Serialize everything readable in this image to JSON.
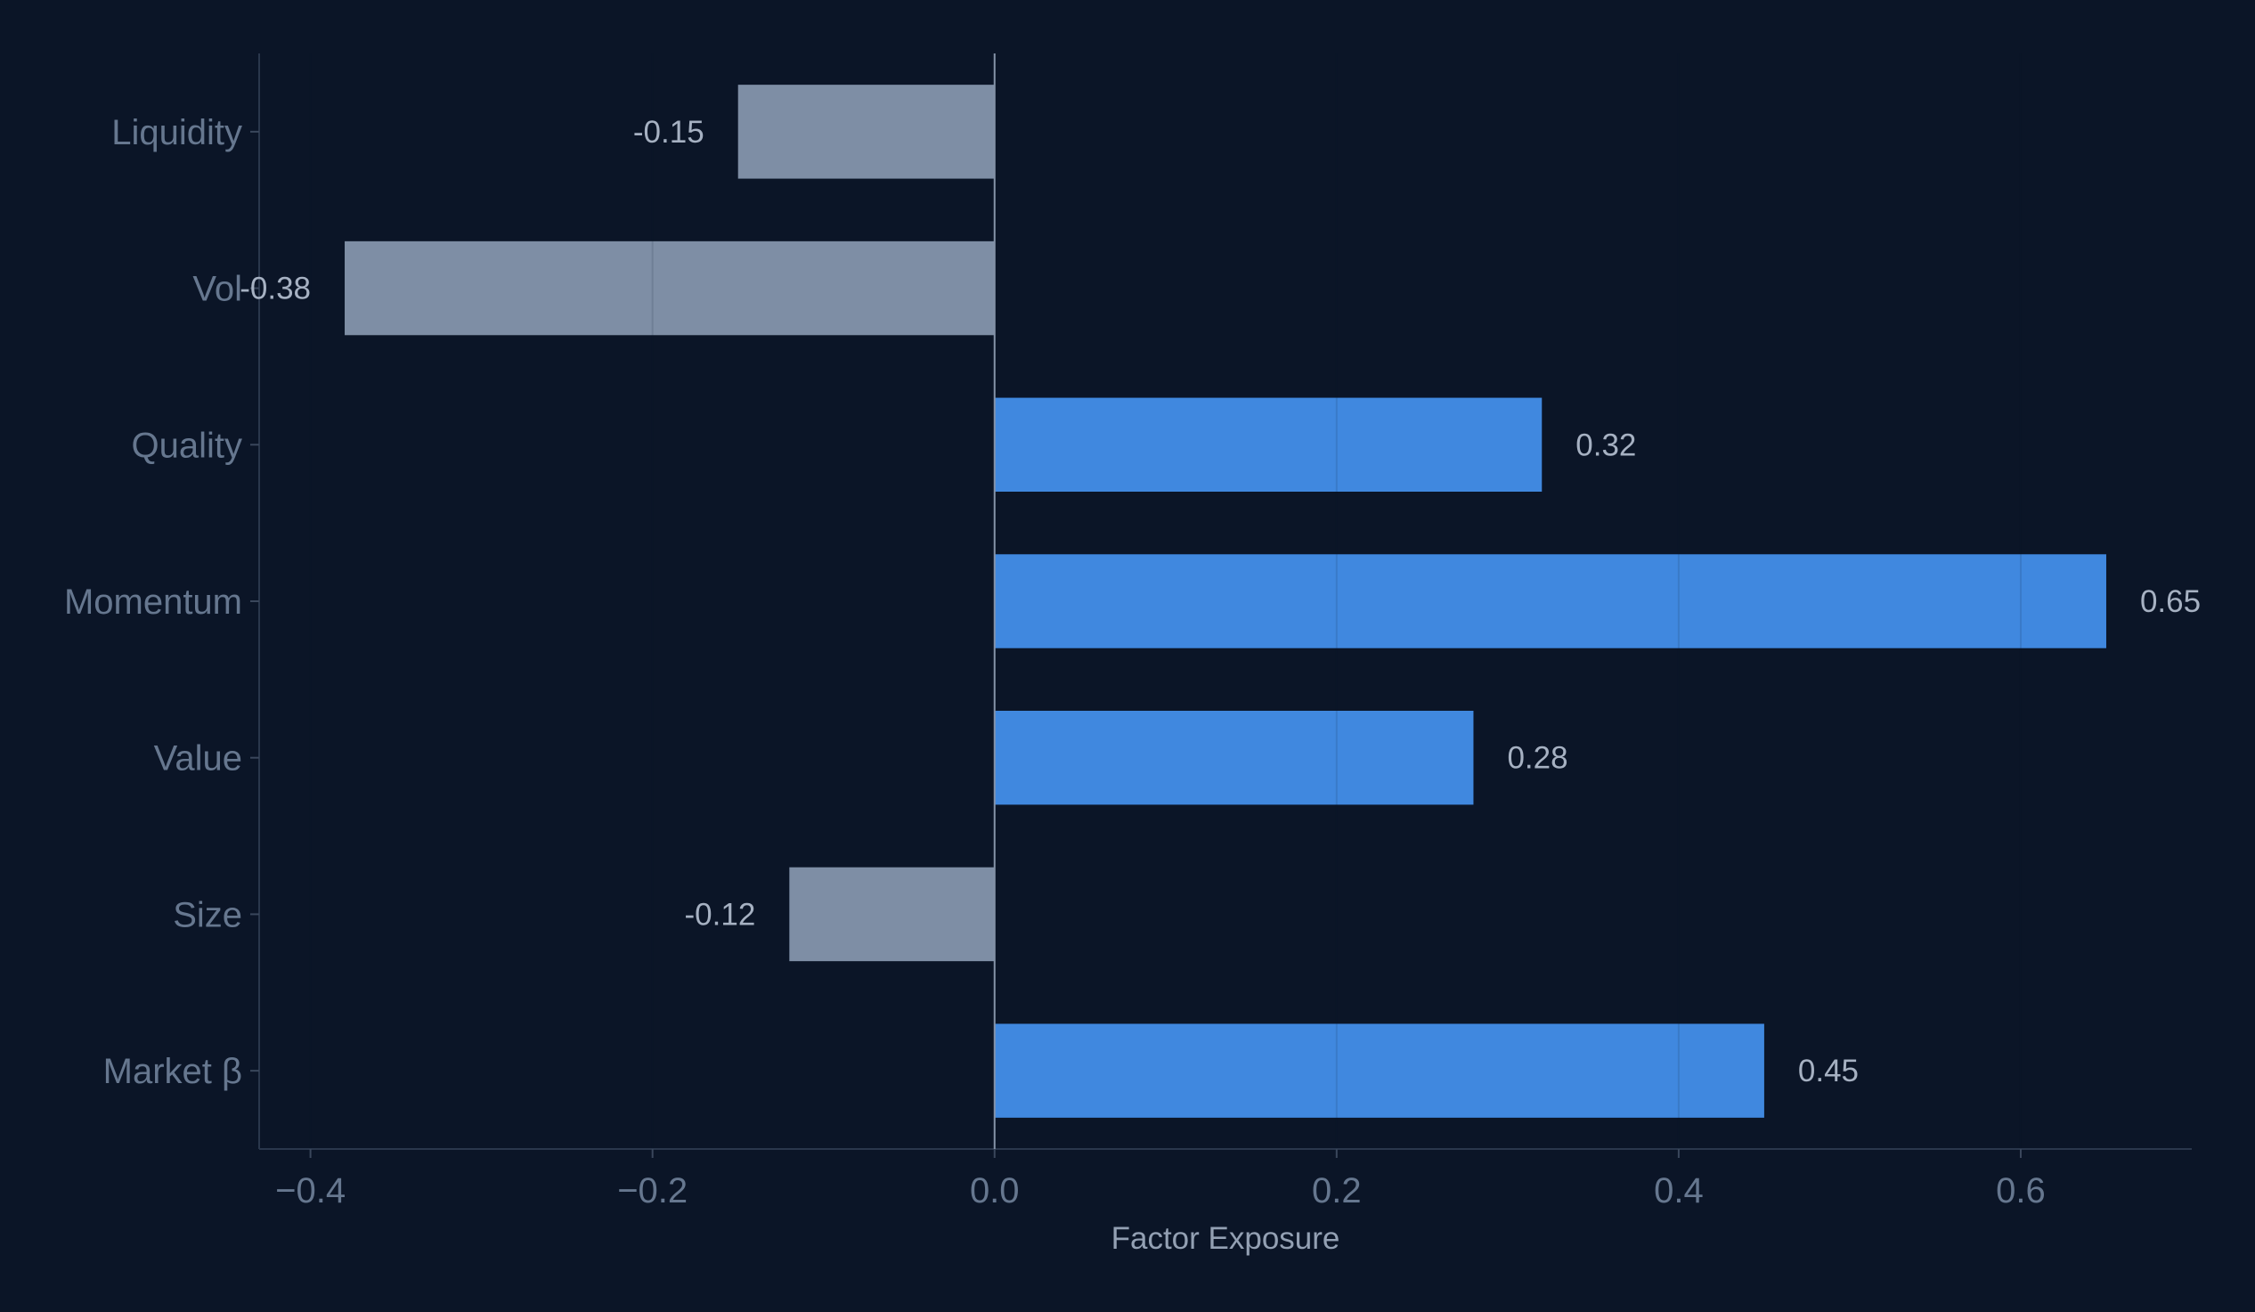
{
  "chart_data": {
    "type": "bar",
    "orientation": "horizontal",
    "categories": [
      "Market β",
      "Size",
      "Value",
      "Momentum",
      "Quality",
      "Vol",
      "Liquidity"
    ],
    "values": [
      0.45,
      -0.12,
      0.28,
      0.65,
      0.32,
      -0.38,
      -0.15
    ],
    "value_labels": [
      "0.45",
      "-0.12",
      "0.28",
      "0.65",
      "0.32",
      "-0.38",
      "-0.15"
    ],
    "xlabel": "Factor Exposure",
    "ylabel": "",
    "xlim": [
      -0.43,
      0.7
    ],
    "xticks": [
      -0.4,
      -0.2,
      0.0,
      0.2,
      0.4,
      0.6
    ],
    "xtick_labels": [
      "−0.4",
      "−0.2",
      "0.0",
      "0.2",
      "0.4",
      "0.6"
    ],
    "grid": "vertical",
    "colors": {
      "background": "#0b1527",
      "positive": "#4088df",
      "negative": "#7e8ea5",
      "zero_line": "#8593a8",
      "axis": "#2a374c"
    }
  }
}
